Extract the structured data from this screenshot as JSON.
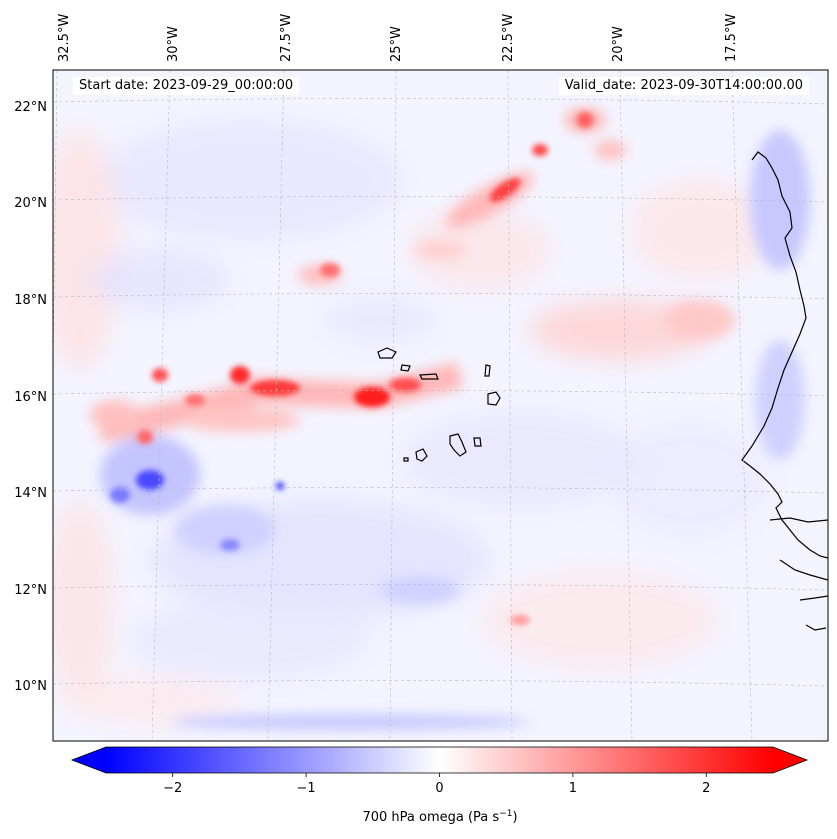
{
  "map": {
    "start_date": "Start date: 2023-09-29_00:00:00",
    "valid_date": "Valid_date: 2023-09-30T14:00:00.00",
    "lon_ticks": [
      "32.5°W",
      "30°W",
      "27.5°W",
      "25°W",
      "22.5°W",
      "20°W",
      "17.5°W"
    ],
    "lat_ticks": [
      "22°N",
      "20°N",
      "18°N",
      "16°N",
      "14°N",
      "12°N",
      "10°N"
    ],
    "field": "700 hPa omega",
    "colormap": "bwr",
    "colors": {
      "negative": "#0000ff",
      "zero": "#ffffff",
      "positive": "#ff0000",
      "coast": "#000000"
    }
  },
  "colorbar": {
    "label_main": "700 hPa omega (Pa s",
    "label_exp": "−1",
    "label_close": ")",
    "tick_labels": [
      "−2",
      "−1",
      "0",
      "1",
      "2"
    ],
    "tick_values": [
      -2,
      -1,
      0,
      1,
      2
    ],
    "range": [
      -2.5,
      2.5
    ],
    "extend": "both"
  }
}
